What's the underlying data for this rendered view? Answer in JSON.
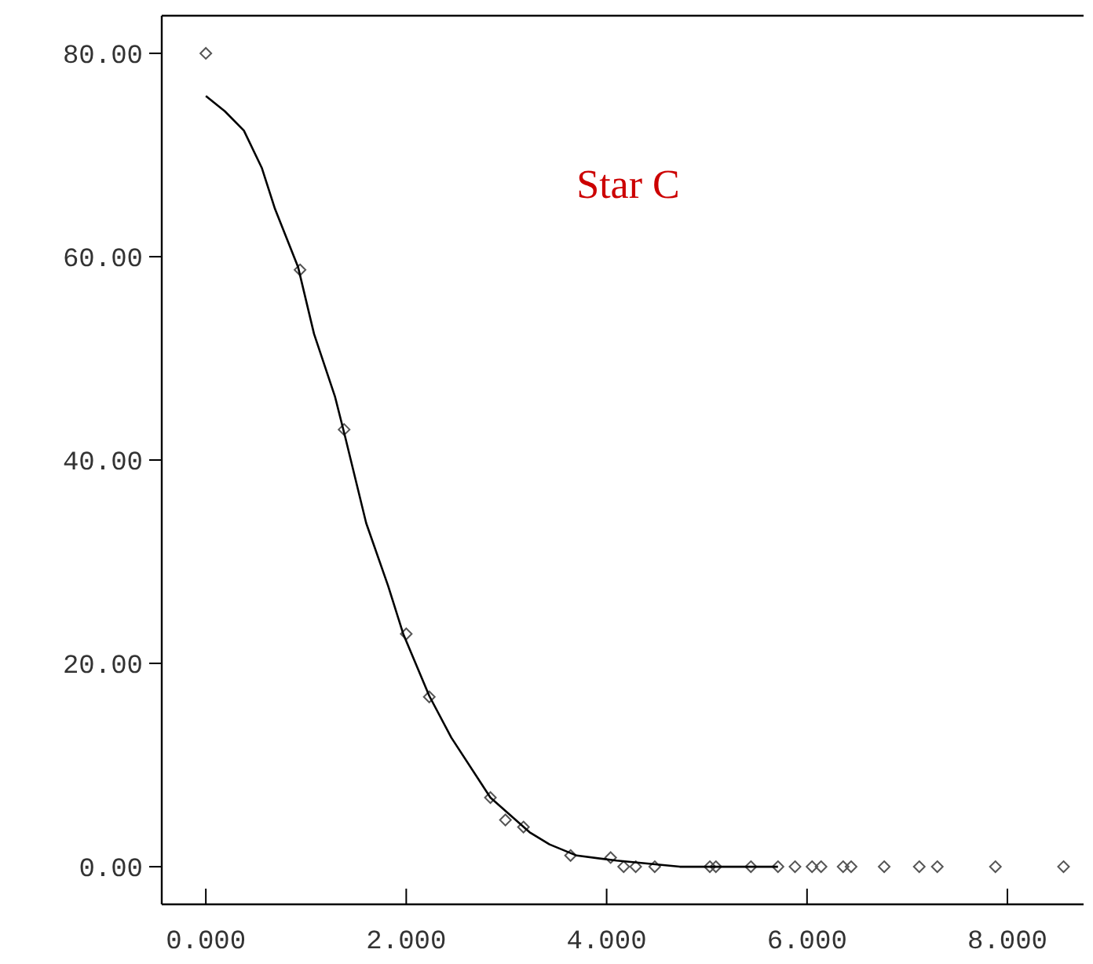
{
  "chart_data": {
    "type": "scatter",
    "title": "Star C",
    "xlim": [
      -0.44,
      8.76
    ],
    "ylim": [
      -3.7,
      83.7
    ],
    "xticks": [
      {
        "value": 0,
        "label": "0.000"
      },
      {
        "value": 2,
        "label": "2.000"
      },
      {
        "value": 4,
        "label": "4.000"
      },
      {
        "value": 6,
        "label": "6.000"
      },
      {
        "value": 8,
        "label": "8.000"
      }
    ],
    "yticks": [
      {
        "value": 0,
        "label": "0.00"
      },
      {
        "value": 20,
        "label": "20.00"
      },
      {
        "value": 40,
        "label": "40.00"
      },
      {
        "value": 60,
        "label": "60.00"
      },
      {
        "value": 80,
        "label": "80.00"
      }
    ],
    "grid": false,
    "series": [
      {
        "color": "#555555",
        "marker": "diamond",
        "x": [
          0,
          0.94,
          1.38,
          2.0,
          2.23,
          2.84,
          2.99,
          3.17,
          3.64,
          4.04,
          4.17,
          4.29,
          4.48,
          5.03,
          5.09,
          5.44,
          5.71,
          5.88,
          6.05,
          6.14,
          6.36,
          6.44,
          6.77,
          7.12,
          7.3,
          7.88,
          8.56
        ],
        "values": [
          80,
          58.7,
          43,
          22.9,
          16.7,
          6.8,
          4.6,
          3.9,
          1.1,
          0.9,
          0,
          0,
          0,
          0,
          0,
          0,
          0,
          0,
          0,
          0,
          0,
          0,
          0,
          0,
          0,
          0,
          0
        ]
      },
      {
        "type": "line",
        "color": "#000000",
        "marker": "none",
        "line_style": "solid",
        "x": [
          0,
          0.19,
          0.38,
          0.56,
          0.69,
          0.92,
          1.08,
          1.29,
          1.39,
          1.6,
          1.82,
          1.97,
          2.23,
          2.45,
          2.84,
          3.23,
          3.43,
          3.7,
          4.1,
          4.73,
          5.71
        ],
        "values": [
          75.8,
          74.3,
          72.4,
          68.7,
          64.7,
          59,
          52.4,
          46.2,
          42.3,
          33.8,
          27.6,
          22.9,
          16.8,
          12.7,
          6.8,
          3.4,
          2.2,
          1.1,
          0.6,
          0,
          0
        ]
      }
    ]
  }
}
